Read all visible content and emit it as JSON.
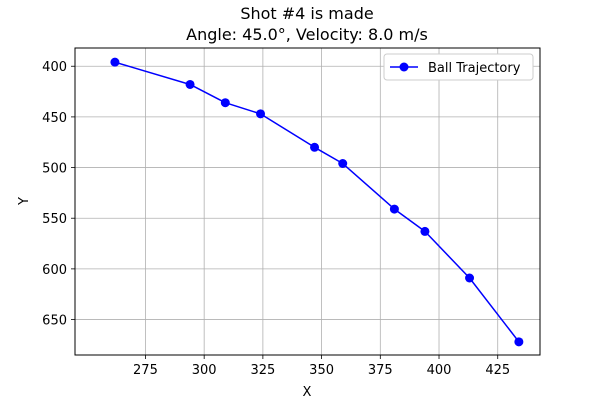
{
  "chart_data": {
    "type": "line",
    "title": "Shot #4 is made",
    "subtitle": "Angle: 45.0°, Velocity: 8.0 m/s",
    "xlabel": "X",
    "ylabel": "Y",
    "xlim": [
      245,
      443
    ],
    "ylim": [
      685,
      382
    ],
    "y_inverted": true,
    "grid": true,
    "legend_position": "top-right",
    "x_ticks": [
      275,
      300,
      325,
      350,
      375,
      400,
      425
    ],
    "y_ticks": [
      400,
      450,
      500,
      550,
      600,
      650
    ],
    "series": [
      {
        "name": "Ball Trajectory",
        "color": "#0000ff",
        "marker": "circle",
        "x": [
          262,
          294,
          309,
          324,
          347,
          359,
          381,
          394,
          413,
          434
        ],
        "y": [
          396,
          418,
          436,
          447,
          480,
          496,
          541,
          563,
          609,
          672
        ]
      }
    ]
  }
}
